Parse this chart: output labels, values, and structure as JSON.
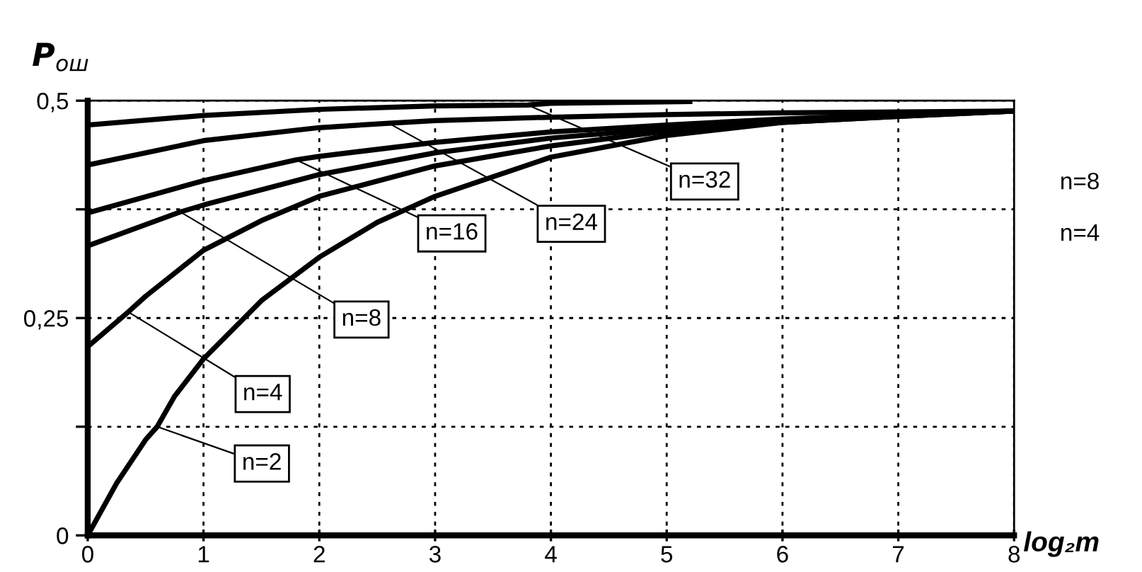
{
  "chart_data": {
    "type": "line",
    "xlabel": "log₂m",
    "ylabel": "P$_{ош}$",
    "xlim": [
      0,
      8
    ],
    "ylim": [
      0,
      0.5
    ],
    "xticks": [
      0,
      1,
      2,
      3,
      4,
      5,
      6,
      7,
      8
    ],
    "yticks": [
      {
        "value": 0,
        "label": "0"
      },
      {
        "value": 0.125,
        "label": null
      },
      {
        "value": 0.25,
        "label": "0,25"
      },
      {
        "value": 0.375,
        "label": null
      },
      {
        "value": 0.5,
        "label": "0,5"
      }
    ],
    "grid": true,
    "line_style": "solid",
    "marker": "none",
    "series": [
      {
        "name": "n=2",
        "color": "#000000",
        "x": [
          0,
          0.25,
          0.5,
          0.6,
          0.75,
          1,
          1.5,
          2,
          2.5,
          3,
          4,
          5,
          6,
          7,
          8
        ],
        "values": [
          0,
          0.06,
          0.11,
          0.125,
          0.16,
          0.203,
          0.27,
          0.32,
          0.36,
          0.39,
          0.435,
          0.46,
          0.475,
          0.482,
          0.488
        ]
      },
      {
        "name": "n=4",
        "color": "#000000",
        "x": [
          0,
          0.35,
          0.5,
          1,
          1.5,
          2,
          3,
          4,
          5,
          6,
          7,
          8
        ],
        "values": [
          0.217,
          0.257,
          0.275,
          0.328,
          0.362,
          0.39,
          0.425,
          0.448,
          0.465,
          0.475,
          0.482,
          0.488
        ]
      },
      {
        "name": "n=8",
        "color": "#000000",
        "x": [
          0,
          0.8,
          1,
          2,
          3,
          4,
          5,
          6,
          7,
          8
        ],
        "values": [
          0.333,
          0.372,
          0.38,
          0.415,
          0.44,
          0.457,
          0.468,
          0.477,
          0.483,
          0.488
        ]
      },
      {
        "name": "n=16",
        "color": "#000000",
        "x": [
          0,
          1,
          1.8,
          2,
          3,
          4,
          5,
          6,
          7,
          8
        ],
        "values": [
          0.371,
          0.408,
          0.432,
          0.436,
          0.452,
          0.464,
          0.472,
          0.479,
          0.484,
          0.488
        ]
      },
      {
        "name": "n=24",
        "color": "#000000",
        "x": [
          0,
          1,
          2,
          2.6,
          3,
          4,
          5,
          6,
          7,
          8
        ],
        "values": [
          0.426,
          0.454,
          0.469,
          0.474,
          0.477,
          0.481,
          0.484,
          0.486,
          0.487,
          0.488
        ]
      },
      {
        "name": "n=32",
        "color": "#000000",
        "x": [
          0,
          1,
          2,
          3,
          3.8,
          4,
          5.2
        ],
        "values": [
          0.472,
          0.483,
          0.49,
          0.494,
          0.495,
          0.497,
          0.499
        ]
      }
    ],
    "annotations": [
      "n=8",
      "n=4"
    ]
  }
}
